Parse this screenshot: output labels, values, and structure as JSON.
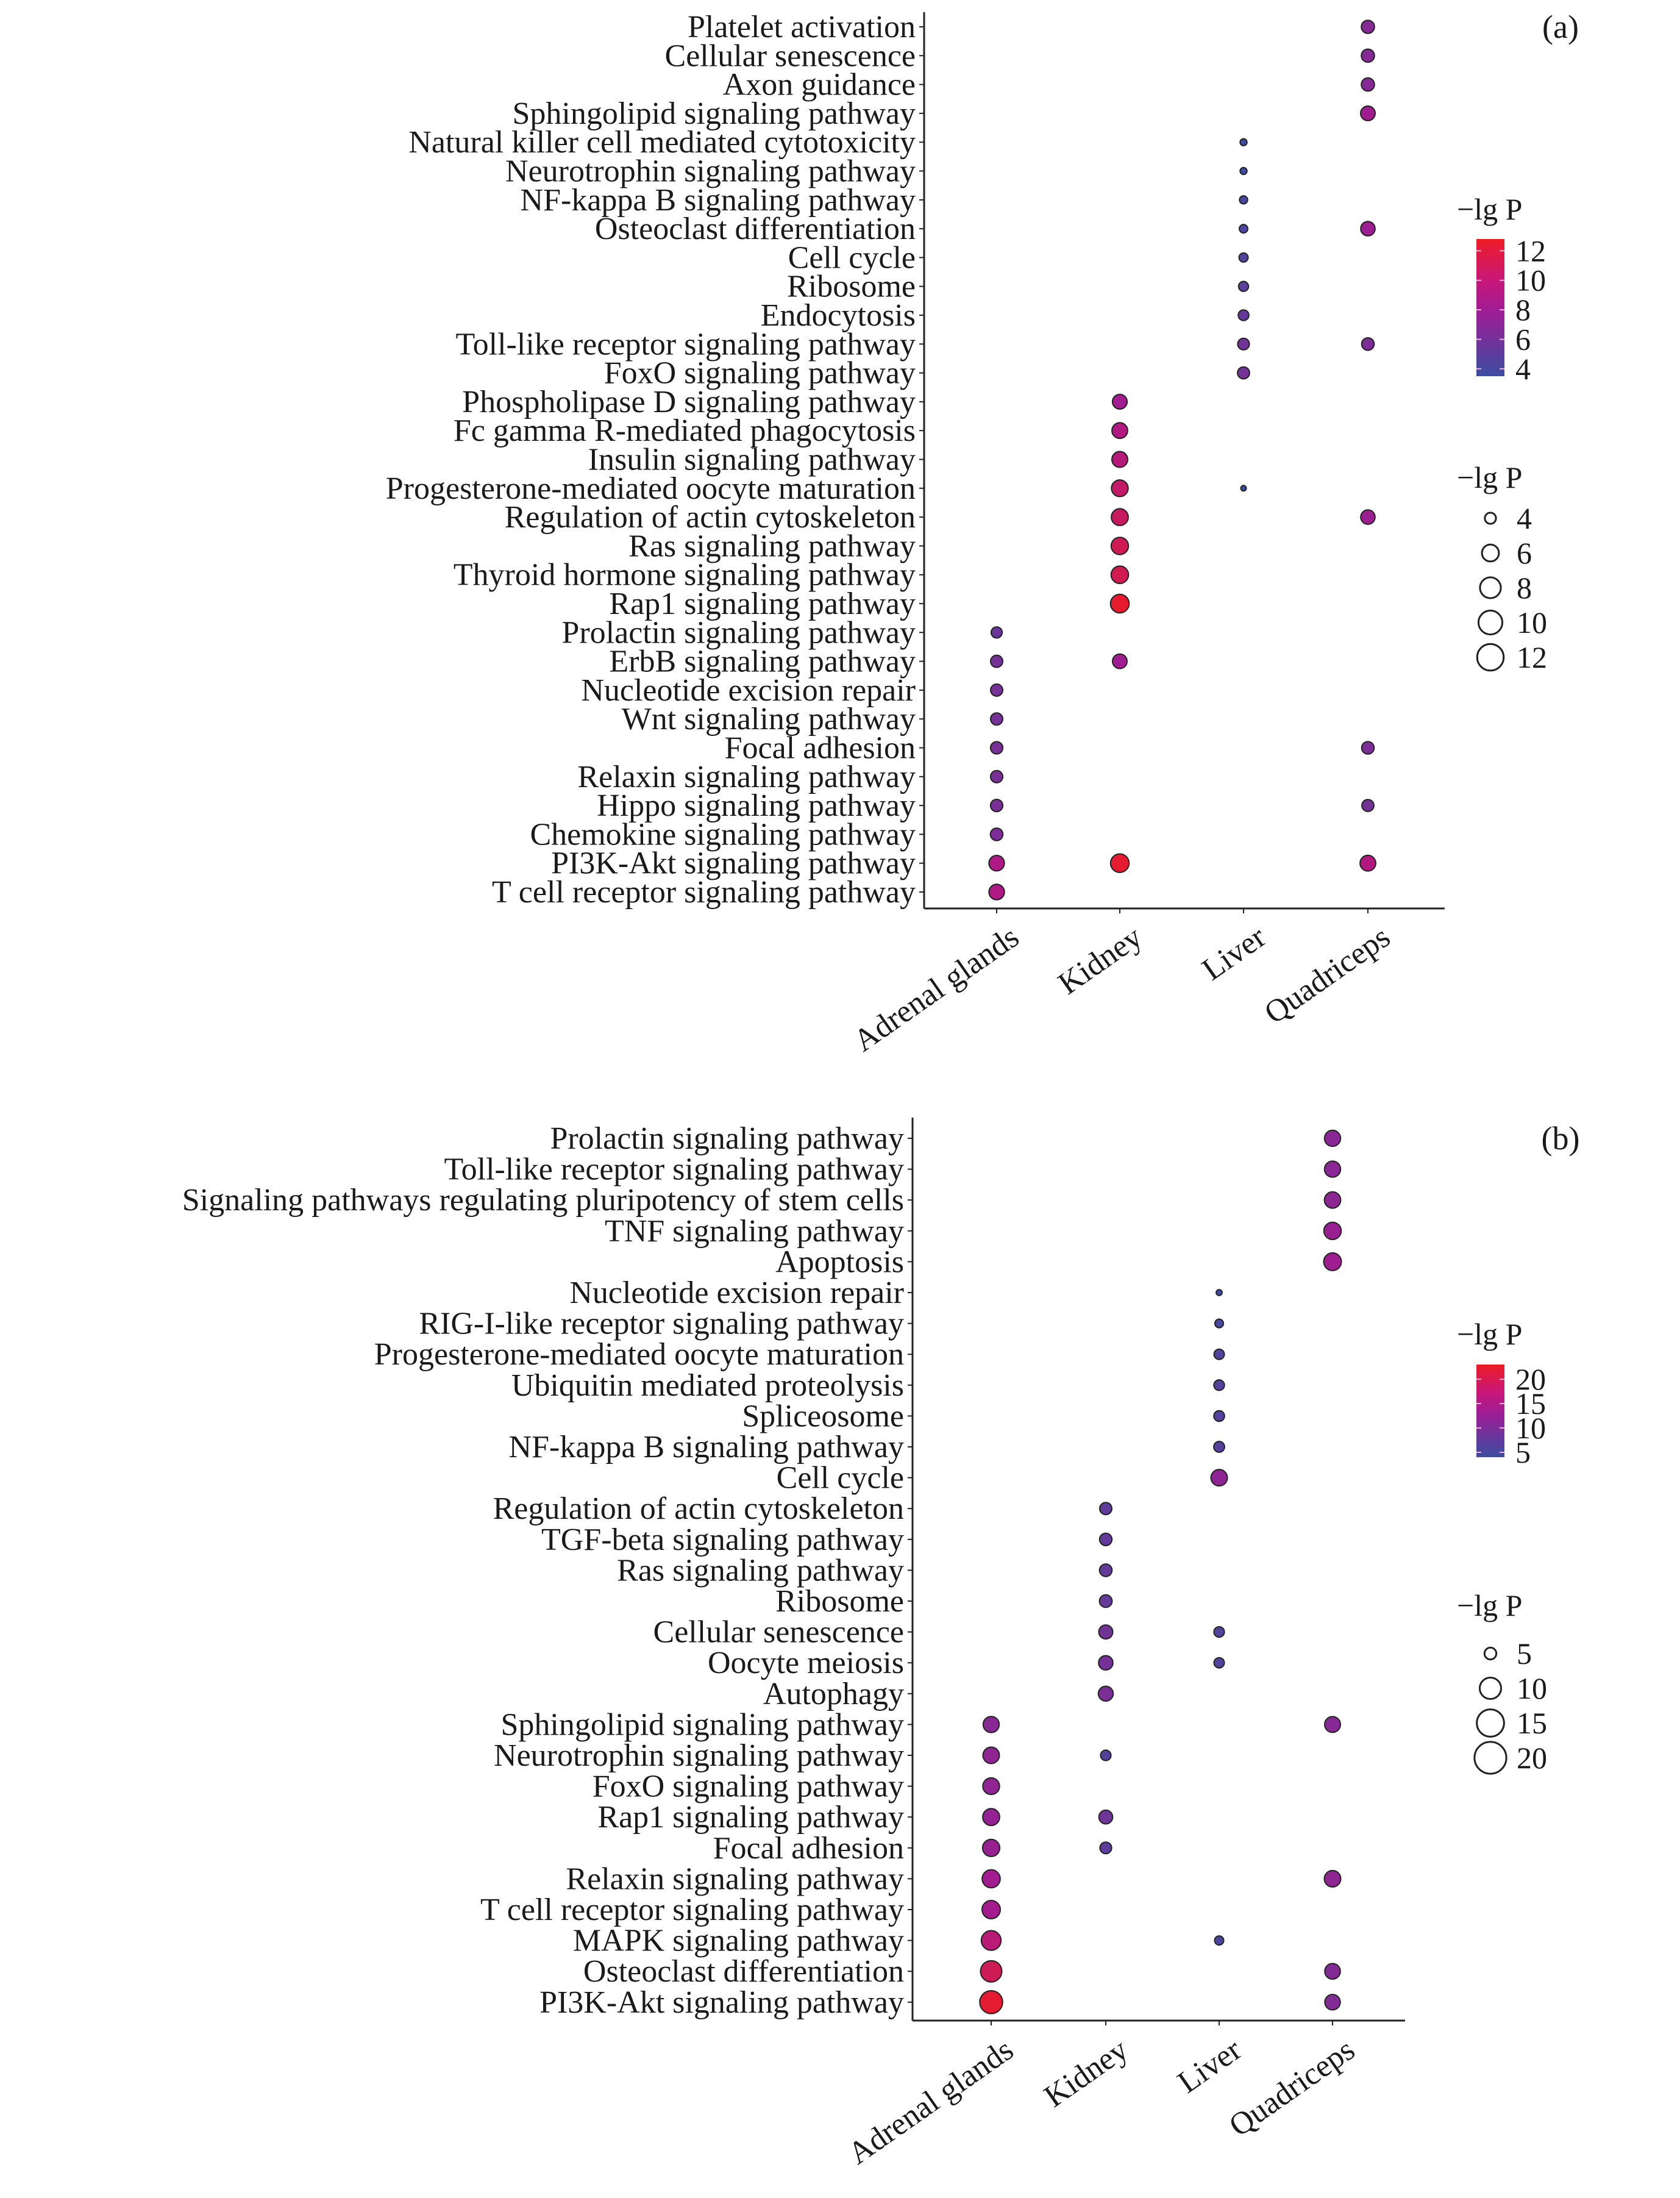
{
  "chart_data": [
    {
      "type": "scatter",
      "subtype": "bubble",
      "panel_label": "(a)",
      "categories_x": [
        "Adrenal glands",
        "Kidney",
        "Liver",
        "Quadriceps"
      ],
      "categories_y": [
        "Platelet activation",
        "Cellular senescence",
        "Axon guidance",
        "Sphingolipid signaling pathway",
        "Natural killer cell mediated cytotoxicity",
        "Neurotrophin signaling pathway",
        "NF-kappa B signaling pathway",
        "Osteoclast differentiation",
        "Cell cycle",
        "Ribosome",
        "Endocytosis",
        "Toll-like receptor signaling pathway",
        "FoxO signaling pathway",
        "Phospholipase D signaling pathway",
        "Fc gamma R-mediated phagocytosis",
        "Insulin signaling pathway",
        "Progesterone-mediated oocyte maturation",
        "Regulation of actin cytoskeleton",
        "Ras signaling pathway",
        "Thyroid hormone signaling pathway",
        "Rap1 signaling pathway",
        "Prolactin signaling pathway",
        "ErbB signaling pathway",
        "Nucleotide excision repair",
        "Wnt signaling pathway",
        "Focal adhesion",
        "Relaxin signaling pathway",
        "Hippo signaling pathway",
        "Chemokine signaling pathway",
        "PI3K-Akt signaling pathway",
        "T cell receptor signaling pathway"
      ],
      "points": [
        {
          "y": "Platelet activation",
          "x": "Quadriceps",
          "value": 7.0
        },
        {
          "y": "Cellular senescence",
          "x": "Quadriceps",
          "value": 7.0
        },
        {
          "y": "Axon guidance",
          "x": "Quadriceps",
          "value": 7.0
        },
        {
          "y": "Sphingolipid signaling pathway",
          "x": "Quadriceps",
          "value": 8.2
        },
        {
          "y": "Natural killer cell mediated cytotoxicity",
          "x": "Liver",
          "value": 3.8
        },
        {
          "y": "Neurotrophin signaling pathway",
          "x": "Liver",
          "value": 3.8
        },
        {
          "y": "NF-kappa B signaling pathway",
          "x": "Liver",
          "value": 4.2
        },
        {
          "y": "Osteoclast differentiation",
          "x": "Liver",
          "value": 4.3
        },
        {
          "y": "Osteoclast differentiation",
          "x": "Quadriceps",
          "value": 8.0
        },
        {
          "y": "Cell cycle",
          "x": "Liver",
          "value": 4.6
        },
        {
          "y": "Ribosome",
          "x": "Liver",
          "value": 5.0
        },
        {
          "y": "Endocytosis",
          "x": "Liver",
          "value": 5.4
        },
        {
          "y": "Toll-like receptor signaling pathway",
          "x": "Liver",
          "value": 6.0
        },
        {
          "y": "Toll-like receptor signaling pathway",
          "x": "Quadriceps",
          "value": 6.6
        },
        {
          "y": "FoxO signaling pathway",
          "x": "Liver",
          "value": 6.2
        },
        {
          "y": "Phospholipase D signaling pathway",
          "x": "Kidney",
          "value": 8.3
        },
        {
          "y": "Fc gamma R-mediated phagocytosis",
          "x": "Kidney",
          "value": 9.2
        },
        {
          "y": "Insulin signaling pathway",
          "x": "Kidney",
          "value": 9.4
        },
        {
          "y": "Progesterone-mediated oocyte maturation",
          "x": "Kidney",
          "value": 10.2
        },
        {
          "y": "Progesterone-mediated oocyte maturation",
          "x": "Liver",
          "value": 3.5
        },
        {
          "y": "Regulation of actin cytoskeleton",
          "x": "Kidney",
          "value": 10.5
        },
        {
          "y": "Regulation of actin cytoskeleton",
          "x": "Quadriceps",
          "value": 8.0
        },
        {
          "y": "Ras signaling pathway",
          "x": "Kidney",
          "value": 10.9
        },
        {
          "y": "Thyroid hormone signaling pathway",
          "x": "Kidney",
          "value": 11.0
        },
        {
          "y": "Rap1 signaling pathway",
          "x": "Kidney",
          "value": 12.4
        },
        {
          "y": "Prolactin signaling pathway",
          "x": "Adrenal glands",
          "value": 5.6
        },
        {
          "y": "ErbB signaling pathway",
          "x": "Adrenal glands",
          "value": 6.3
        },
        {
          "y": "ErbB signaling pathway",
          "x": "Kidney",
          "value": 8.2
        },
        {
          "y": "Nucleotide excision repair",
          "x": "Adrenal glands",
          "value": 6.3
        },
        {
          "y": "Wnt signaling pathway",
          "x": "Adrenal glands",
          "value": 6.3
        },
        {
          "y": "Focal adhesion",
          "x": "Adrenal glands",
          "value": 6.4
        },
        {
          "y": "Focal adhesion",
          "x": "Quadriceps",
          "value": 6.6
        },
        {
          "y": "Relaxin signaling pathway",
          "x": "Adrenal glands",
          "value": 6.4
        },
        {
          "y": "Hippo signaling pathway",
          "x": "Adrenal glands",
          "value": 6.4
        },
        {
          "y": "Hippo signaling pathway",
          "x": "Quadriceps",
          "value": 6.2
        },
        {
          "y": "Chemokine signaling pathway",
          "x": "Adrenal glands",
          "value": 6.6
        },
        {
          "y": "PI3K-Akt signaling pathway",
          "x": "Adrenal glands",
          "value": 9.0
        },
        {
          "y": "PI3K-Akt signaling pathway",
          "x": "Kidney",
          "value": 12.3
        },
        {
          "y": "PI3K-Akt signaling pathway",
          "x": "Quadriceps",
          "value": 9.2
        },
        {
          "y": "T cell receptor signaling pathway",
          "x": "Adrenal glands",
          "value": 9.0
        }
      ],
      "color_legend": {
        "title": "−lg P",
        "ticks": [
          12,
          10,
          8,
          6,
          4
        ],
        "range": [
          3.5,
          12.8
        ],
        "low_color": "#3a4da0",
        "mid_color": "#a8198f",
        "high_color": "#ed1c24"
      },
      "size_legend": {
        "title": "−lg P",
        "ticks": [
          4,
          6,
          8,
          10,
          12
        ]
      },
      "xlabel": "",
      "ylabel": ""
    },
    {
      "type": "scatter",
      "subtype": "bubble",
      "panel_label": "(b)",
      "categories_x": [
        "Adrenal glands",
        "Kidney",
        "Liver",
        "Quadriceps"
      ],
      "categories_y": [
        "Prolactin signaling pathway",
        "Toll-like receptor signaling pathway",
        "Signaling pathways regulating pluripotency of stem cells",
        "TNF signaling pathway",
        "Apoptosis",
        "Nucleotide excision repair",
        "RIG-I-like receptor signaling pathway",
        "Progesterone-mediated oocyte maturation",
        "Ubiquitin mediated proteolysis",
        "Spliceosome",
        "NF-kappa B signaling pathway",
        "Cell cycle",
        "Regulation of actin cytoskeleton",
        "TGF-beta signaling pathway",
        "Ras signaling pathway",
        "Ribosome",
        "Cellular senescence",
        "Oocyte meiosis",
        "Autophagy",
        "Sphingolipid signaling pathway",
        "Neurotrophin signaling pathway",
        "FoxO signaling pathway",
        "Rap1 signaling pathway",
        "Focal adhesion",
        "Relaxin signaling pathway",
        "T cell receptor signaling pathway",
        "MAPK signaling pathway",
        "Osteoclast differentiation",
        "PI3K-Akt signaling pathway"
      ],
      "points": [
        {
          "y": "Prolactin signaling pathway",
          "x": "Quadriceps",
          "value": 11.5
        },
        {
          "y": "Toll-like receptor signaling pathway",
          "x": "Quadriceps",
          "value": 11.5
        },
        {
          "y": "Signaling pathways regulating pluripotency of stem cells",
          "x": "Quadriceps",
          "value": 11.8
        },
        {
          "y": "TNF signaling pathway",
          "x": "Quadriceps",
          "value": 13.0
        },
        {
          "y": "Apoptosis",
          "x": "Quadriceps",
          "value": 13.5
        },
        {
          "y": "Nucleotide excision repair",
          "x": "Liver",
          "value": 4.2
        },
        {
          "y": "RIG-I-like receptor signaling pathway",
          "x": "Liver",
          "value": 5.2
        },
        {
          "y": "Progesterone-mediated oocyte maturation",
          "x": "Liver",
          "value": 6.2
        },
        {
          "y": "Ubiquitin mediated proteolysis",
          "x": "Liver",
          "value": 6.4
        },
        {
          "y": "Spliceosome",
          "x": "Liver",
          "value": 6.5
        },
        {
          "y": "NF-kappa B signaling pathway",
          "x": "Liver",
          "value": 6.6
        },
        {
          "y": "Cell cycle",
          "x": "Liver",
          "value": 12.0
        },
        {
          "y": "Regulation of actin cytoskeleton",
          "x": "Kidney",
          "value": 7.6
        },
        {
          "y": "TGF-beta signaling pathway",
          "x": "Kidney",
          "value": 7.8
        },
        {
          "y": "Ras signaling pathway",
          "x": "Kidney",
          "value": 7.9
        },
        {
          "y": "Ribosome",
          "x": "Kidney",
          "value": 8.0
        },
        {
          "y": "Cellular senescence",
          "x": "Kidney",
          "value": 9.3
        },
        {
          "y": "Cellular senescence",
          "x": "Liver",
          "value": 6.3
        },
        {
          "y": "Oocyte meiosis",
          "x": "Kidney",
          "value": 9.6
        },
        {
          "y": "Oocyte meiosis",
          "x": "Liver",
          "value": 6.2
        },
        {
          "y": "Autophagy",
          "x": "Kidney",
          "value": 10.2
        },
        {
          "y": "Sphingolipid signaling pathway",
          "x": "Adrenal glands",
          "value": 11.5
        },
        {
          "y": "Sphingolipid signaling pathway",
          "x": "Quadriceps",
          "value": 11.3
        },
        {
          "y": "Neurotrophin signaling pathway",
          "x": "Adrenal glands",
          "value": 12.0
        },
        {
          "y": "Neurotrophin signaling pathway",
          "x": "Kidney",
          "value": 6.3
        },
        {
          "y": "FoxO signaling pathway",
          "x": "Adrenal glands",
          "value": 12.3
        },
        {
          "y": "Rap1 signaling pathway",
          "x": "Adrenal glands",
          "value": 12.6
        },
        {
          "y": "Rap1 signaling pathway",
          "x": "Kidney",
          "value": 9.0
        },
        {
          "y": "Focal adhesion",
          "x": "Adrenal glands",
          "value": 12.9
        },
        {
          "y": "Focal adhesion",
          "x": "Kidney",
          "value": 7.2
        },
        {
          "y": "Relaxin signaling pathway",
          "x": "Adrenal glands",
          "value": 14.0
        },
        {
          "y": "Relaxin signaling pathway",
          "x": "Quadriceps",
          "value": 12.0
        },
        {
          "y": "T cell receptor signaling pathway",
          "x": "Adrenal glands",
          "value": 14.3
        },
        {
          "y": "MAPK signaling pathway",
          "x": "Adrenal glands",
          "value": 16.5
        },
        {
          "y": "MAPK signaling pathway",
          "x": "Liver",
          "value": 5.5
        },
        {
          "y": "Osteoclast differentiation",
          "x": "Adrenal glands",
          "value": 19.0
        },
        {
          "y": "Osteoclast differentiation",
          "x": "Quadriceps",
          "value": 11.0
        },
        {
          "y": "PI3K-Akt signaling pathway",
          "x": "Adrenal glands",
          "value": 22.0
        },
        {
          "y": "PI3K-Akt signaling pathway",
          "x": "Quadriceps",
          "value": 10.8
        }
      ],
      "color_legend": {
        "title": "−lg P",
        "ticks": [
          20,
          15,
          10,
          5
        ],
        "range": [
          4.0,
          23.0
        ],
        "low_color": "#3a4da0",
        "mid_color": "#a8198f",
        "high_color": "#ed1c24"
      },
      "size_legend": {
        "title": "−lg P",
        "ticks": [
          5,
          10,
          15,
          20
        ]
      },
      "xlabel": "",
      "ylabel": ""
    }
  ]
}
